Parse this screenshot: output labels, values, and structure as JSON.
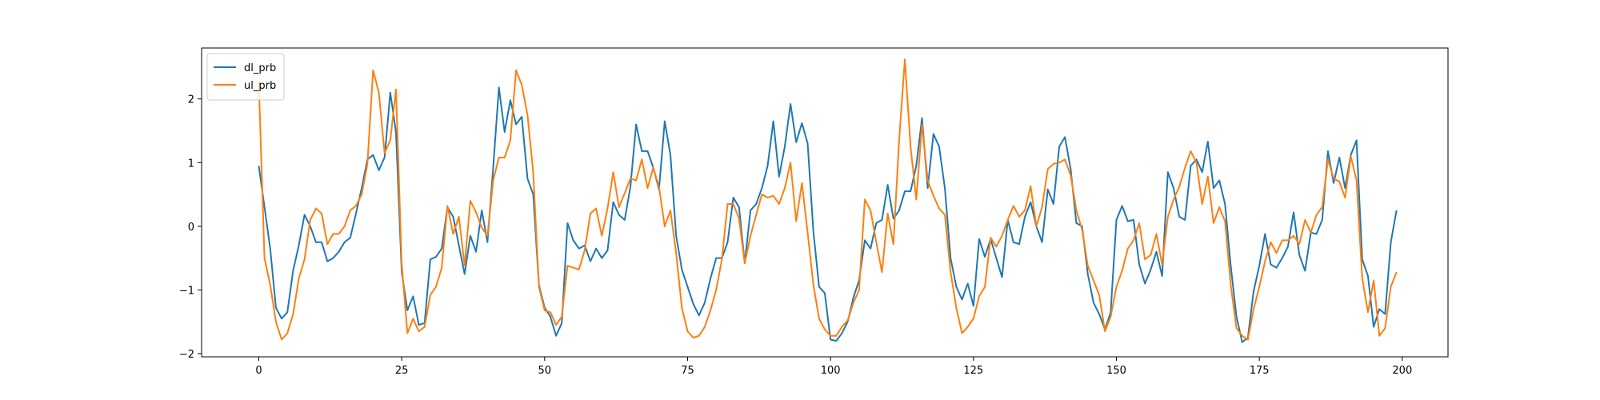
{
  "chart_data": {
    "type": "line",
    "title": "",
    "xlabel": "",
    "ylabel": "",
    "xlim": [
      -10,
      208
    ],
    "ylim": [
      -2.05,
      2.8
    ],
    "xticks": [
      0,
      25,
      50,
      75,
      100,
      125,
      150,
      175,
      200
    ],
    "yticks": [
      -2,
      -1,
      0,
      1,
      2
    ],
    "grid": false,
    "legend_position": "top-left",
    "x": [
      0,
      1,
      2,
      3,
      4,
      5,
      6,
      7,
      8,
      9,
      10,
      11,
      12,
      13,
      14,
      15,
      16,
      17,
      18,
      19,
      20,
      21,
      22,
      23,
      24,
      25,
      26,
      27,
      28,
      29,
      30,
      31,
      32,
      33,
      34,
      35,
      36,
      37,
      38,
      39,
      40,
      41,
      42,
      43,
      44,
      45,
      46,
      47,
      48,
      49,
      50,
      51,
      52,
      53,
      54,
      55,
      56,
      57,
      58,
      59,
      60,
      61,
      62,
      63,
      64,
      65,
      66,
      67,
      68,
      69,
      70,
      71,
      72,
      73,
      74,
      75,
      76,
      77,
      78,
      79,
      80,
      81,
      82,
      83,
      84,
      85,
      86,
      87,
      88,
      89,
      90,
      91,
      92,
      93,
      94,
      95,
      96,
      97,
      98,
      99,
      100,
      101,
      102,
      103,
      104,
      105,
      106,
      107,
      108,
      109,
      110,
      111,
      112,
      113,
      114,
      115,
      116,
      117,
      118,
      119,
      120,
      121,
      122,
      123,
      124,
      125,
      126,
      127,
      128,
      129,
      130,
      131,
      132,
      133,
      134,
      135,
      136,
      137,
      138,
      139,
      140,
      141,
      142,
      143,
      144,
      145,
      146,
      147,
      148,
      149,
      150,
      151,
      152,
      153,
      154,
      155,
      156,
      157,
      158,
      159,
      160,
      161,
      162,
      163,
      164,
      165,
      166,
      167,
      168,
      169,
      170,
      171,
      172,
      173,
      174,
      175,
      176,
      177,
      178,
      179,
      180,
      181,
      182,
      183,
      184,
      185,
      186,
      187,
      188,
      189,
      190,
      191,
      192,
      193,
      194,
      195,
      196,
      197,
      198,
      199
    ],
    "series": [
      {
        "name": "dl_prb",
        "color": "#1f77b4",
        "values": [
          0.95,
          0.3,
          -0.35,
          -1.28,
          -1.45,
          -1.35,
          -0.7,
          -0.3,
          0.18,
          0.0,
          -0.25,
          -0.25,
          -0.55,
          -0.5,
          -0.4,
          -0.25,
          -0.18,
          0.2,
          0.6,
          1.05,
          1.12,
          0.88,
          1.08,
          2.1,
          1.48,
          -0.72,
          -1.32,
          -1.1,
          -1.55,
          -1.52,
          -0.52,
          -0.48,
          -0.35,
          0.3,
          0.15,
          -0.3,
          -0.75,
          -0.15,
          -0.4,
          0.25,
          -0.25,
          0.92,
          2.18,
          1.48,
          1.98,
          1.6,
          1.72,
          0.75,
          0.5,
          -0.92,
          -1.28,
          -1.42,
          -1.72,
          -1.52,
          0.05,
          -0.22,
          -0.35,
          -0.3,
          -0.55,
          -0.35,
          -0.5,
          -0.38,
          0.38,
          0.18,
          0.1,
          0.62,
          1.6,
          1.18,
          1.18,
          0.92,
          0.58,
          1.65,
          1.12,
          -0.15,
          -0.68,
          -0.95,
          -1.22,
          -1.4,
          -1.2,
          -0.82,
          -0.5,
          -0.5,
          -0.25,
          0.45,
          0.3,
          -0.58,
          0.25,
          0.35,
          0.6,
          0.95,
          1.65,
          0.78,
          1.25,
          1.92,
          1.32,
          1.62,
          1.3,
          -0.08,
          -0.95,
          -1.05,
          -1.78,
          -1.8,
          -1.68,
          -1.5,
          -1.12,
          -0.85,
          -0.22,
          -0.35,
          0.05,
          0.1,
          0.65,
          0.12,
          0.25,
          0.55,
          0.55,
          0.95,
          1.7,
          0.6,
          1.45,
          1.25,
          0.6,
          -0.5,
          -0.95,
          -1.15,
          -0.9,
          -1.25,
          -0.2,
          -0.48,
          -0.2,
          -0.5,
          -0.8,
          0.1,
          -0.25,
          -0.28,
          0.15,
          0.38,
          0.0,
          -0.25,
          0.58,
          0.35,
          1.25,
          1.4,
          0.9,
          0.05,
          0.0,
          -0.75,
          -1.2,
          -1.38,
          -1.62,
          -1.35,
          0.1,
          0.32,
          0.08,
          0.1,
          -0.6,
          -0.9,
          -0.68,
          -0.4,
          -0.78,
          0.85,
          0.6,
          0.15,
          0.1,
          0.95,
          1.05,
          0.85,
          1.33,
          0.6,
          0.72,
          0.35,
          -0.62,
          -1.42,
          -1.82,
          -1.75,
          -1.02,
          -0.62,
          -0.12,
          -0.6,
          -0.65,
          -0.5,
          -0.32,
          0.22,
          -0.45,
          -0.7,
          -0.1,
          -0.12,
          0.1,
          1.18,
          0.68,
          1.08,
          0.6,
          1.12,
          1.35,
          -0.52,
          -0.78,
          -1.58,
          -1.3,
          -1.38,
          -0.25,
          0.25
        ]
      },
      {
        "name": "ul_prb",
        "color": "#ff7f0e",
        "values": [
          2.28,
          -0.5,
          -0.92,
          -1.5,
          -1.78,
          -1.68,
          -1.38,
          -0.82,
          -0.52,
          0.1,
          0.28,
          0.2,
          -0.28,
          -0.12,
          -0.12,
          0.0,
          0.25,
          0.32,
          0.5,
          0.98,
          2.45,
          2.1,
          1.15,
          1.35,
          2.15,
          -0.6,
          -1.68,
          -1.45,
          -1.65,
          -1.58,
          -1.08,
          -0.95,
          -0.65,
          0.32,
          -0.12,
          0.15,
          -0.62,
          0.4,
          0.22,
          -0.02,
          -0.15,
          0.72,
          1.08,
          1.08,
          1.35,
          2.45,
          2.22,
          1.75,
          0.85,
          -0.95,
          -1.32,
          -1.35,
          -1.55,
          -1.42,
          -0.62,
          -0.65,
          -0.68,
          -0.38,
          0.2,
          0.28,
          -0.15,
          0.28,
          0.85,
          0.3,
          0.52,
          0.75,
          0.72,
          1.05,
          0.6,
          0.92,
          0.62,
          0.0,
          0.25,
          -0.42,
          -1.28,
          -1.65,
          -1.75,
          -1.72,
          -1.58,
          -1.32,
          -1.0,
          -0.52,
          0.35,
          0.35,
          0.12,
          -0.58,
          -0.15,
          0.18,
          0.5,
          0.45,
          0.48,
          0.35,
          0.6,
          1.0,
          0.08,
          0.68,
          -0.1,
          -0.92,
          -1.45,
          -1.62,
          -1.72,
          -1.72,
          -1.58,
          -1.48,
          -1.2,
          -1.0,
          0.42,
          0.25,
          -0.25,
          -0.72,
          0.2,
          -0.28,
          1.35,
          2.62,
          1.25,
          0.42,
          1.6,
          0.72,
          0.48,
          0.28,
          0.18,
          -0.72,
          -1.28,
          -1.68,
          -1.58,
          -1.45,
          -1.1,
          -0.95,
          -0.18,
          -0.32,
          -0.15,
          0.1,
          0.32,
          0.15,
          0.25,
          0.63,
          0.0,
          0.3,
          0.9,
          0.98,
          1.0,
          1.05,
          0.8,
          0.25,
          -0.05,
          -0.62,
          -0.85,
          -1.08,
          -1.65,
          -1.42,
          -0.95,
          -0.7,
          -0.35,
          -0.22,
          0.05,
          -0.52,
          -0.45,
          -0.12,
          -0.6,
          0.15,
          0.42,
          0.62,
          0.92,
          1.18,
          1.0,
          0.35,
          0.78,
          0.05,
          0.3,
          0.08,
          -0.92,
          -1.6,
          -1.72,
          -1.78,
          -1.3,
          -0.95,
          -0.55,
          -0.25,
          -0.42,
          -0.22,
          -0.22,
          -0.15,
          -0.28,
          0.1,
          -0.1,
          0.18,
          0.3,
          1.05,
          0.75,
          0.7,
          0.45,
          1.1,
          0.72,
          -0.82,
          -1.35,
          -0.85,
          -1.72,
          -1.6,
          -0.95,
          -0.72
        ]
      }
    ]
  }
}
